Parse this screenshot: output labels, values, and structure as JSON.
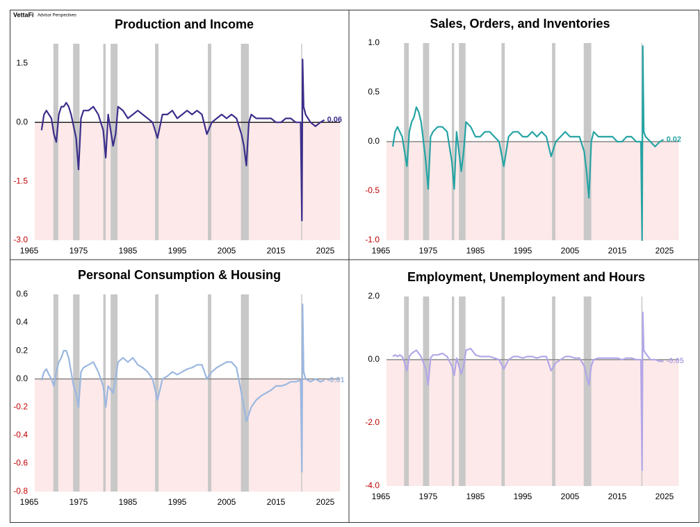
{
  "branding": {
    "logo": "VettaFi",
    "tagline": "Advisor Perspectives"
  },
  "recessions": [
    [
      1969.9,
      1970.9
    ],
    [
      1973.9,
      1975.2
    ],
    [
      1980.0,
      1980.5
    ],
    [
      1981.5,
      1982.9
    ],
    [
      1990.5,
      1991.2
    ],
    [
      2001.2,
      2001.9
    ],
    [
      2007.9,
      2009.5
    ],
    [
      2020.1,
      2020.3
    ]
  ],
  "chart_data": [
    {
      "type": "line",
      "title": "Production and Income",
      "color": "#3b2d8a",
      "x": [
        1967.5,
        1968,
        1968.5,
        1969,
        1969.5,
        1970,
        1970.5,
        1971,
        1971.5,
        1972,
        1972.5,
        1973,
        1973.5,
        1974,
        1974.5,
        1975,
        1975.5,
        1976,
        1977,
        1978,
        1979,
        1980,
        1980.5,
        1981,
        1982,
        1982.5,
        1983,
        1984,
        1985,
        1986,
        1987,
        1988,
        1989,
        1990,
        1991,
        1992,
        1993,
        1994,
        1995,
        1996,
        1997,
        1998,
        1999,
        2000,
        2001,
        2002,
        2003,
        2004,
        2005,
        2006,
        2007,
        2008,
        2008.5,
        2009,
        2009.5,
        2010,
        2011,
        2012,
        2013,
        2014,
        2015,
        2016,
        2017,
        2018,
        2019,
        2020,
        2020.25,
        2020.4,
        2020.6,
        2021,
        2022,
        2023,
        2024,
        2024.8
      ],
      "values": [
        -0.2,
        0.2,
        0.3,
        0.2,
        0.1,
        -0.3,
        -0.5,
        0.2,
        0.4,
        0.4,
        0.5,
        0.4,
        0.2,
        -0.1,
        -0.4,
        -1.2,
        0.1,
        0.3,
        0.3,
        0.4,
        0.2,
        -0.2,
        -0.9,
        0.2,
        -0.6,
        -0.3,
        0.4,
        0.3,
        0.1,
        0.2,
        0.3,
        0.2,
        0.1,
        0.0,
        -0.4,
        0.2,
        0.2,
        0.3,
        0.1,
        0.2,
        0.3,
        0.2,
        0.3,
        0.2,
        -0.3,
        0.0,
        0.1,
        0.2,
        0.1,
        0.2,
        0.1,
        -0.3,
        -0.6,
        -1.1,
        0.0,
        0.2,
        0.1,
        0.1,
        0.1,
        0.1,
        0.0,
        0.0,
        0.1,
        0.1,
        0.0,
        0.0,
        -2.5,
        1.6,
        0.4,
        0.2,
        0.0,
        -0.1,
        0.0,
        0.06
      ],
      "xlim": [
        1965,
        2028
      ],
      "xticks": [
        1965,
        1975,
        1985,
        1995,
        2005,
        2015,
        2025
      ],
      "ylim": [
        -3,
        2
      ],
      "yticks": [
        {
          "value": 1.5,
          "label": "1.5"
        },
        {
          "value": 0,
          "label": "0.0"
        },
        {
          "value": -1.5,
          "label": "-1.5"
        },
        {
          "value": -3,
          "label": "-3.0"
        }
      ]
    },
    {
      "type": "line",
      "title": "Sales, Orders, and Inventories",
      "color": "#26a3a3",
      "x": [
        1967.5,
        1968,
        1968.5,
        1969,
        1969.5,
        1970,
        1970.5,
        1971,
        1971.5,
        1972,
        1972.5,
        1973,
        1973.5,
        1974,
        1974.5,
        1975,
        1975.5,
        1976,
        1977,
        1978,
        1979,
        1980,
        1980.5,
        1981,
        1982,
        1982.5,
        1983,
        1984,
        1985,
        1986,
        1987,
        1988,
        1989,
        1990,
        1991,
        1992,
        1993,
        1994,
        1995,
        1996,
        1997,
        1998,
        1999,
        2000,
        2001,
        2002,
        2003,
        2004,
        2005,
        2006,
        2007,
        2008,
        2008.5,
        2009,
        2009.5,
        2010,
        2011,
        2012,
        2013,
        2014,
        2015,
        2016,
        2017,
        2018,
        2019,
        2020,
        2020.25,
        2020.4,
        2020.6,
        2021,
        2022,
        2023,
        2024,
        2024.8
      ],
      "values": [
        -0.05,
        0.1,
        0.15,
        0.1,
        0.05,
        -0.1,
        -0.25,
        0.1,
        0.2,
        0.25,
        0.35,
        0.3,
        0.2,
        0.0,
        -0.2,
        -0.48,
        0.05,
        0.1,
        0.15,
        0.15,
        0.1,
        -0.2,
        -0.48,
        0.1,
        -0.3,
        -0.1,
        0.2,
        0.15,
        0.05,
        0.05,
        0.1,
        0.1,
        0.05,
        0.0,
        -0.25,
        0.05,
        0.1,
        0.1,
        0.05,
        0.05,
        0.1,
        0.05,
        0.1,
        0.05,
        -0.15,
        0.0,
        0.05,
        0.1,
        0.05,
        0.05,
        0.05,
        -0.1,
        -0.3,
        -0.57,
        0.0,
        0.1,
        0.05,
        0.05,
        0.05,
        0.05,
        0.0,
        0.0,
        0.05,
        0.05,
        0.0,
        0.0,
        -1.0,
        0.97,
        0.1,
        0.05,
        0.0,
        -0.05,
        0.0,
        0.02
      ],
      "xlim": [
        1965,
        2028
      ],
      "xticks": [
        1965,
        1975,
        1985,
        1995,
        2005,
        2015,
        2025
      ],
      "ylim": [
        -1,
        1
      ],
      "yticks": [
        {
          "value": 1,
          "label": "1.0"
        },
        0.5,
        {
          "value": 0,
          "label": "0.0"
        },
        -0.5,
        {
          "value": -1,
          "label": "-1.0"
        }
      ]
    },
    {
      "type": "line",
      "title": "Personal Consumption & Housing",
      "color": "#9bb7e0",
      "x": [
        1967.5,
        1968,
        1968.5,
        1969,
        1969.5,
        1970,
        1970.5,
        1971,
        1971.5,
        1972,
        1972.5,
        1973,
        1973.5,
        1974,
        1974.5,
        1975,
        1975.5,
        1976,
        1977,
        1978,
        1979,
        1980,
        1980.5,
        1981,
        1982,
        1982.5,
        1983,
        1984,
        1985,
        1986,
        1987,
        1988,
        1989,
        1990,
        1991,
        1992,
        1993,
        1994,
        1995,
        1996,
        1997,
        1998,
        1999,
        2000,
        2001,
        2002,
        2003,
        2004,
        2005,
        2006,
        2007,
        2008,
        2008.5,
        2009,
        2009.5,
        2010,
        2011,
        2012,
        2013,
        2014,
        2015,
        2016,
        2017,
        2018,
        2019,
        2020,
        2020.25,
        2020.4,
        2020.6,
        2021,
        2022,
        2023,
        2024,
        2024.8
      ],
      "values": [
        -0.01,
        0.05,
        0.07,
        0.03,
        0.0,
        -0.05,
        0.05,
        0.12,
        0.15,
        0.2,
        0.2,
        0.15,
        0.05,
        -0.05,
        -0.1,
        -0.2,
        0.05,
        0.08,
        0.1,
        0.12,
        0.05,
        -0.05,
        -0.2,
        -0.05,
        -0.1,
        0.0,
        0.12,
        0.15,
        0.12,
        0.15,
        0.1,
        0.08,
        0.05,
        0.0,
        -0.15,
        0.0,
        0.02,
        0.05,
        0.03,
        0.05,
        0.07,
        0.08,
        0.1,
        0.1,
        0.0,
        0.05,
        0.08,
        0.1,
        0.12,
        0.12,
        0.08,
        -0.1,
        -0.2,
        -0.3,
        -0.25,
        -0.2,
        -0.15,
        -0.12,
        -0.1,
        -0.08,
        -0.05,
        -0.05,
        -0.04,
        -0.02,
        -0.02,
        -0.01,
        -0.66,
        0.53,
        0.05,
        0.0,
        -0.02,
        0.0,
        -0.02,
        -0.01
      ],
      "xlim": [
        1965,
        2028
      ],
      "xticks": [
        1965,
        1975,
        1985,
        1995,
        2005,
        2015,
        2025
      ],
      "ylim": [
        -0.8,
        0.6
      ],
      "yticks": [
        0.6,
        0.4,
        0.2,
        {
          "value": 0,
          "label": "0.0"
        },
        -0.2,
        -0.4,
        -0.6,
        -0.8
      ]
    },
    {
      "type": "line",
      "title": "Employment, Unemployment and Hours",
      "color": "#b3a6e8",
      "x": [
        1967.5,
        1968,
        1968.5,
        1969,
        1969.5,
        1970,
        1970.5,
        1971,
        1971.5,
        1972,
        1972.5,
        1973,
        1973.5,
        1974,
        1974.5,
        1975,
        1975.5,
        1976,
        1977,
        1978,
        1979,
        1980,
        1980.5,
        1981,
        1982,
        1982.5,
        1983,
        1984,
        1985,
        1986,
        1987,
        1988,
        1989,
        1990,
        1991,
        1992,
        1993,
        1994,
        1995,
        1996,
        1997,
        1998,
        1999,
        2000,
        2001,
        2002,
        2003,
        2004,
        2005,
        2006,
        2007,
        2008,
        2008.5,
        2009,
        2009.5,
        2010,
        2011,
        2012,
        2013,
        2014,
        2015,
        2016,
        2017,
        2018,
        2019,
        2020,
        2020.25,
        2020.4,
        2020.6,
        2021,
        2022,
        2023,
        2024,
        2024.8
      ],
      "values": [
        0.1,
        0.15,
        0.1,
        0.15,
        0.1,
        -0.1,
        -0.35,
        0.1,
        0.2,
        0.25,
        0.3,
        0.2,
        0.1,
        -0.1,
        -0.3,
        -0.8,
        0.05,
        0.15,
        0.15,
        0.2,
        0.1,
        -0.2,
        -0.5,
        0.05,
        -0.45,
        -0.2,
        0.3,
        0.35,
        0.15,
        0.1,
        0.1,
        0.1,
        0.05,
        0.0,
        -0.3,
        0.0,
        0.1,
        0.1,
        0.05,
        0.1,
        0.1,
        0.05,
        0.1,
        0.1,
        -0.35,
        -0.1,
        0.0,
        0.1,
        0.1,
        0.05,
        0.05,
        -0.2,
        -0.5,
        -0.8,
        -0.2,
        0.0,
        0.05,
        0.05,
        0.05,
        0.05,
        0.05,
        0.0,
        0.05,
        0.05,
        0.0,
        0.0,
        -3.5,
        1.5,
        0.3,
        0.2,
        0.0,
        0.0,
        -0.05,
        -0.05
      ],
      "xlim": [
        1965,
        2028
      ],
      "xticks": [
        1965,
        1975,
        1985,
        1995,
        2005,
        2015,
        2025
      ],
      "ylim": [
        -4,
        2
      ],
      "yticks": [
        {
          "value": 2,
          "label": "2.0"
        },
        {
          "value": 0,
          "label": "0.0"
        },
        {
          "value": -2,
          "label": "-2.0"
        },
        {
          "value": -4,
          "label": "-4.0"
        }
      ]
    }
  ]
}
